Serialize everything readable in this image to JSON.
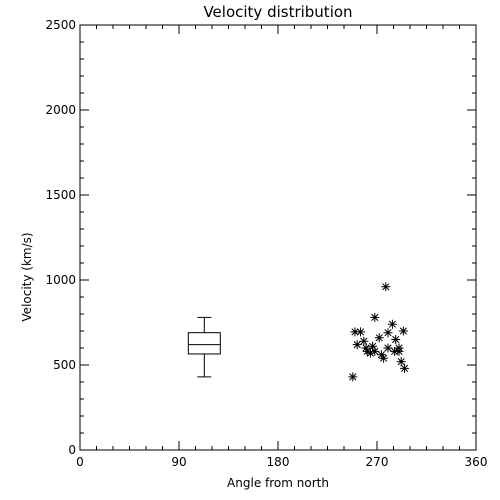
{
  "chart_data": {
    "type": "scatter",
    "title": "Velocity distribution",
    "xlabel": "Angle from north",
    "ylabel": "Velocity (km/s)",
    "xlim": [
      0,
      360
    ],
    "ylim": [
      0,
      2500
    ],
    "xticks": [
      0,
      90,
      180,
      270,
      360
    ],
    "yticks": [
      0,
      500,
      1000,
      1500,
      2000,
      2500
    ],
    "grid": false,
    "marker": "asterisk",
    "boxplot": {
      "x": 113,
      "min": 430,
      "q1": 565,
      "median": 620,
      "q3": 690,
      "max": 780
    },
    "points": [
      {
        "x": 248,
        "y": 430
      },
      {
        "x": 250,
        "y": 695
      },
      {
        "x": 252,
        "y": 620
      },
      {
        "x": 255,
        "y": 695
      },
      {
        "x": 258,
        "y": 640
      },
      {
        "x": 260,
        "y": 600
      },
      {
        "x": 261,
        "y": 580
      },
      {
        "x": 264,
        "y": 570
      },
      {
        "x": 266,
        "y": 610
      },
      {
        "x": 268,
        "y": 580
      },
      {
        "x": 268,
        "y": 780
      },
      {
        "x": 272,
        "y": 660
      },
      {
        "x": 274,
        "y": 560
      },
      {
        "x": 276,
        "y": 540
      },
      {
        "x": 278,
        "y": 960
      },
      {
        "x": 280,
        "y": 600
      },
      {
        "x": 280,
        "y": 690
      },
      {
        "x": 284,
        "y": 740
      },
      {
        "x": 286,
        "y": 580
      },
      {
        "x": 287,
        "y": 650
      },
      {
        "x": 290,
        "y": 580
      },
      {
        "x": 290,
        "y": 600
      },
      {
        "x": 292,
        "y": 520
      },
      {
        "x": 294,
        "y": 700
      },
      {
        "x": 295,
        "y": 480
      }
    ]
  }
}
